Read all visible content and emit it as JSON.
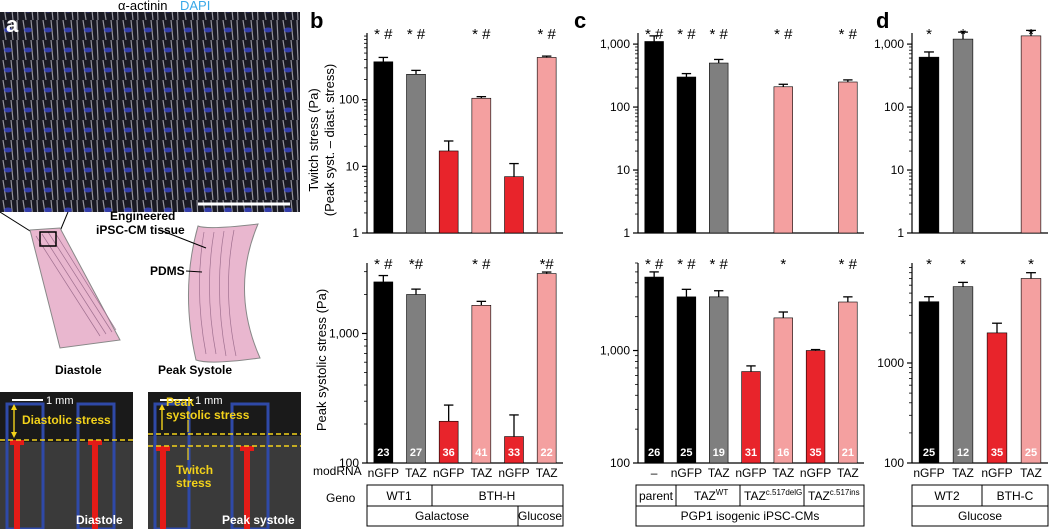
{
  "panel_letters": {
    "a": "a",
    "b": "b",
    "c": "c",
    "d": "d"
  },
  "colors": {
    "black": "#000000",
    "grey": "#7f7f7f",
    "red": "#e8242b",
    "pink": "#f4a0a0",
    "blue_stain": "#2e3cd0",
    "scale_red": "#e41b17",
    "frame_blue": "#2f49a8",
    "dashed": "#f3d21a",
    "tissue": "#e9b7cf"
  },
  "micrograph": {
    "label_actinin": "α-actinin",
    "label_dapi": "DAPI"
  },
  "schematic": {
    "tissue_label_1": "Engineered",
    "tissue_label_2": "iPSC-CM tissue",
    "pdms_label": "PDMS",
    "diastole_label": "Diastole",
    "systole_label": "Peak Systole"
  },
  "photos": {
    "scale_text": "1 mm",
    "left_label": "Diastole",
    "right_label": "Peak systole",
    "diastolic_stress": "Diastolic stress",
    "peak_systolic_1": "Peak",
    "peak_systolic_2": "systolic stress",
    "twitch_1": "Twitch",
    "twitch_2": "stress"
  },
  "axes": {
    "b_top_ylabel_1": "Twitch stress (Pa)",
    "b_top_ylabel_2": "(Peak syst. – diast. stress)",
    "b_bottom_ylabel": "Peak systolic stress (Pa)",
    "modrna_label": "modRNA",
    "geno_label": "Geno"
  },
  "chart_data": [
    {
      "type": "bar",
      "panel": "b",
      "row": "top",
      "scale": "log",
      "ylim": [
        1,
        1000
      ],
      "ticks": [
        1,
        10,
        100
      ],
      "tick_labels": [
        "1",
        "10",
        "100"
      ],
      "categories": [
        "nGFP",
        "TAZ",
        "nGFP",
        "TAZ",
        "nGFP",
        "TAZ"
      ],
      "values": [
        370,
        240,
        17,
        105,
        7,
        430
      ],
      "errors": [
        60,
        35,
        7,
        6,
        4,
        20
      ],
      "colors": [
        "black",
        "grey",
        "red",
        "pink",
        "red",
        "pink"
      ],
      "annotations": [
        "* #",
        "* #",
        "",
        "* #",
        "",
        "* #"
      ]
    },
    {
      "type": "bar",
      "panel": "b",
      "row": "bottom",
      "scale": "log",
      "ylim": [
        100,
        3500
      ],
      "ticks": [
        100,
        1000
      ],
      "tick_labels": [
        "100",
        "1,000"
      ],
      "categories": [
        "nGFP",
        "TAZ",
        "nGFP",
        "TAZ",
        "nGFP",
        "TAZ"
      ],
      "values": [
        2500,
        2000,
        210,
        1650,
        160,
        2900
      ],
      "errors": [
        300,
        200,
        70,
        120,
        75,
        80
      ],
      "colors": [
        "black",
        "grey",
        "red",
        "pink",
        "red",
        "pink"
      ],
      "annotations": [
        "* #",
        "*#",
        "",
        "* #",
        "",
        "*#"
      ],
      "n": [
        "23",
        "27",
        "36",
        "41",
        "33",
        "22"
      ]
    },
    {
      "type": "bar",
      "panel": "c",
      "row": "top",
      "scale": "log",
      "ylim": [
        1,
        1500
      ],
      "ticks": [
        1,
        10,
        100,
        1000
      ],
      "tick_labels": [
        "1",
        "10",
        "100",
        "1,000"
      ],
      "categories": [
        "–",
        "nGFP",
        "TAZ",
        "nGFP",
        "TAZ",
        "nGFP",
        "TAZ"
      ],
      "values": [
        1100,
        300,
        500,
        null,
        210,
        null,
        250
      ],
      "errors": [
        250,
        40,
        70,
        null,
        20,
        null,
        20
      ],
      "colors": [
        "black",
        "black",
        "grey",
        "red",
        "pink",
        "red",
        "pink"
      ],
      "annotations": [
        "* #",
        "* #",
        "* #",
        "",
        "* #",
        "",
        "* #"
      ]
    },
    {
      "type": "bar",
      "panel": "c",
      "row": "bottom",
      "scale": "log",
      "ylim": [
        100,
        6000
      ],
      "ticks": [
        100,
        1000
      ],
      "tick_labels": [
        "100",
        "1,000"
      ],
      "categories": [
        "–",
        "nGFP",
        "TAZ",
        "nGFP",
        "TAZ",
        "nGFP",
        "TAZ"
      ],
      "values": [
        4500,
        3000,
        3000,
        650,
        1950,
        1000,
        2700
      ],
      "errors": [
        500,
        500,
        400,
        80,
        250,
        20,
        300
      ],
      "colors": [
        "black",
        "black",
        "grey",
        "red",
        "pink",
        "red",
        "pink"
      ],
      "annotations": [
        "* #",
        "* #",
        "* #",
        "",
        "*",
        "",
        "* #"
      ],
      "n": [
        "26",
        "25",
        "19",
        "31",
        "16",
        "35",
        "21"
      ]
    },
    {
      "type": "bar",
      "panel": "d",
      "row": "top",
      "scale": "log",
      "ylim": [
        1,
        1500
      ],
      "ticks": [
        1,
        10,
        100,
        1000
      ],
      "tick_labels": [
        "1",
        "10",
        "100",
        "1,000"
      ],
      "categories": [
        "nGFP",
        "TAZ",
        "nGFP",
        "TAZ"
      ],
      "values": [
        620,
        1200,
        null,
        1350
      ],
      "errors": [
        130,
        350,
        null,
        300
      ],
      "colors": [
        "black",
        "grey",
        "red",
        "pink"
      ],
      "annotations": [
        "*",
        "*",
        "",
        "*"
      ]
    },
    {
      "type": "bar",
      "panel": "d",
      "row": "bottom",
      "scale": "log",
      "ylim": [
        100,
        10000
      ],
      "ticks": [
        100,
        1000
      ],
      "tick_labels": [
        "100",
        "1000"
      ],
      "categories": [
        "nGFP",
        "TAZ",
        "nGFP",
        "TAZ"
      ],
      "values": [
        4100,
        5800,
        2000,
        7000
      ],
      "errors": [
        500,
        600,
        500,
        1000
      ],
      "colors": [
        "black",
        "grey",
        "red",
        "pink"
      ],
      "annotations": [
        "*",
        "*",
        "",
        "*"
      ],
      "n": [
        "25",
        "12",
        "35",
        "25"
      ]
    }
  ],
  "geno": {
    "b_row1": [
      "WT1",
      "BTH-H"
    ],
    "b_row2": [
      "Galactose",
      "Glucose"
    ],
    "c_row1_parent": "parent",
    "c_row1_wt": "TAZ",
    "c_row1_wt_sup": "WT",
    "c_row1_delg": "TAZ",
    "c_row1_delg_sup": "c.517delG",
    "c_row1_ins": "TAZ",
    "c_row1_ins_sup": "c.517ins",
    "c_row2": "PGP1 isogenic iPSC-CMs",
    "d_row1": [
      "WT2",
      "BTH-C"
    ],
    "d_row2": "Glucose"
  }
}
